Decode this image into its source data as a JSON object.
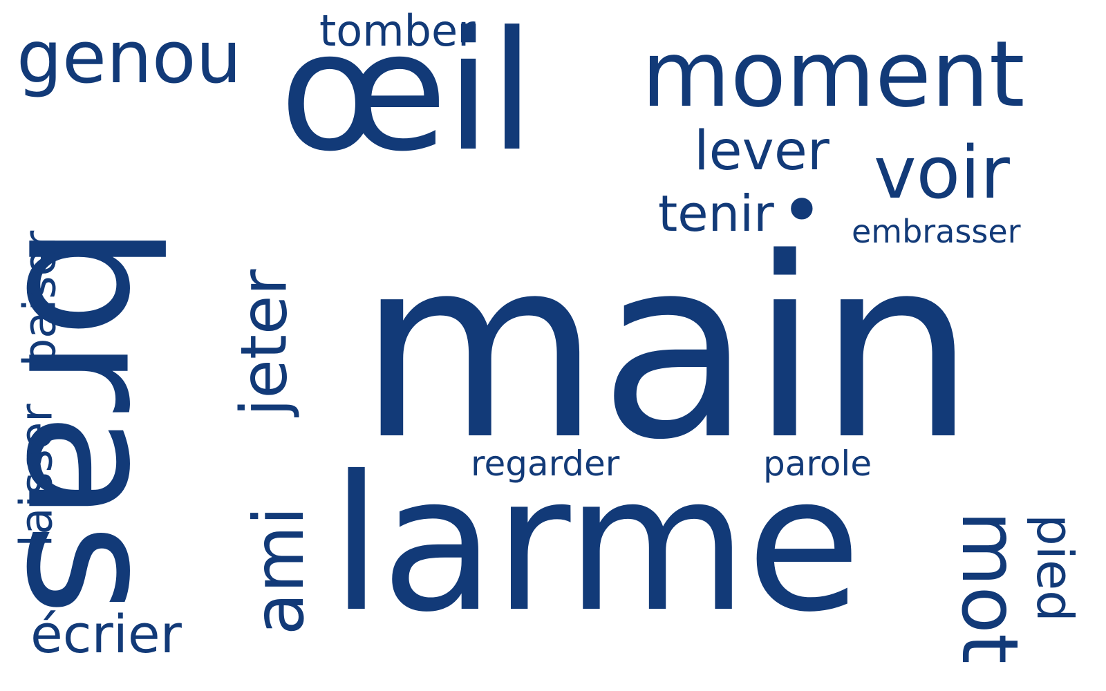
{
  "word_cloud": {
    "color": "#123a78",
    "words": {
      "genou": "genou",
      "tomber": "tomber",
      "oeil": "œil",
      "moment": "moment",
      "lever": "lever",
      "voir": "voir",
      "tenir": "tenir",
      "dot": "•",
      "embrasser": "embrasser",
      "bras": "bras",
      "baiser": "baiser",
      "laisser": "laisser",
      "jeter": "jeter",
      "main": "main",
      "regarder": "regarder",
      "parole": "parole",
      "larme": "larme",
      "ami": "ami",
      "mot": "mot",
      "pied": "pied",
      "ecrier": "écrier"
    }
  }
}
